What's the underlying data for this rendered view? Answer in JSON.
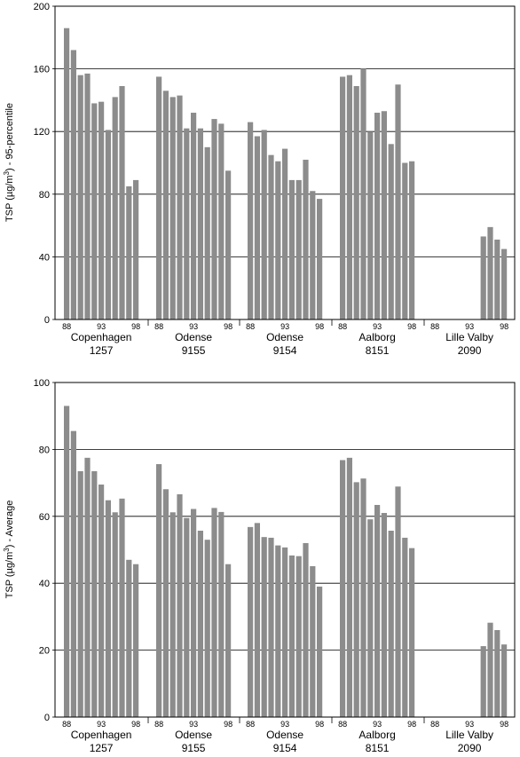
{
  "chart_data": [
    {
      "type": "bar",
      "ylabel_parts": [
        "TSP (µg/m",
        "3",
        ")  -  95-percentile"
      ],
      "ylim": [
        0,
        200
      ],
      "yticks": [
        "0",
        "40",
        "80",
        "120",
        "160",
        "200"
      ],
      "grid": true,
      "bar_color": "#8c8c8c",
      "x": [
        1988,
        1989,
        1990,
        1991,
        1992,
        1993,
        1994,
        1995,
        1996,
        1997,
        1998
      ],
      "xtick_labels": [
        "88",
        "93",
        "98"
      ],
      "groups": [
        {
          "name": "Copenhagen",
          "code": "1257",
          "values": [
            186,
            172,
            156,
            157,
            138,
            139,
            121,
            142,
            149,
            85,
            89
          ]
        },
        {
          "name": "Odense",
          "code": "9155",
          "values": [
            155,
            146,
            142,
            143,
            122,
            132,
            122,
            110,
            128,
            125,
            95
          ]
        },
        {
          "name": "Odense",
          "code": "9154",
          "values": [
            126,
            117,
            121,
            105,
            101,
            109,
            89,
            89,
            102,
            82,
            77
          ]
        },
        {
          "name": "Aalborg",
          "code": "8151",
          "values": [
            155,
            156,
            149,
            160,
            120,
            132,
            133,
            112,
            150,
            100,
            101
          ]
        },
        {
          "name": "Lille Valby",
          "code": "2090",
          "values": [
            null,
            null,
            null,
            null,
            null,
            null,
            null,
            53,
            59,
            51,
            45
          ]
        }
      ]
    },
    {
      "type": "bar",
      "ylabel_parts": [
        "TSP (µg/m",
        "3",
        ")  -  Average"
      ],
      "ylim": [
        0,
        100
      ],
      "yticks": [
        "0",
        "20",
        "40",
        "60",
        "80",
        "100"
      ],
      "grid": true,
      "bar_color": "#8c8c8c",
      "x": [
        1988,
        1989,
        1990,
        1991,
        1992,
        1993,
        1994,
        1995,
        1996,
        1997,
        1998
      ],
      "xtick_labels": [
        "88",
        "93",
        "98"
      ],
      "groups": [
        {
          "name": "Copenhagen",
          "code": "1257",
          "values": [
            93,
            85.5,
            73.5,
            77.5,
            73.5,
            69.5,
            64.8,
            61.2,
            65.3,
            47,
            45.7
          ]
        },
        {
          "name": "Odense",
          "code": "9155",
          "values": [
            75.6,
            68.1,
            61.2,
            66.6,
            59.5,
            62.2,
            55.7,
            53,
            62.5,
            61.3,
            45.7
          ]
        },
        {
          "name": "Odense",
          "code": "9154",
          "values": [
            56.8,
            58,
            53.8,
            53.6,
            51.3,
            50.7,
            48.3,
            48.1,
            52,
            45.1,
            39
          ]
        },
        {
          "name": "Aalborg",
          "code": "8151",
          "values": [
            76.8,
            77.5,
            70.2,
            71.3,
            59.1,
            63.4,
            61,
            55.7,
            68.9,
            53.6,
            50.5
          ]
        },
        {
          "name": "Lille Valby",
          "code": "2090",
          "values": [
            null,
            null,
            null,
            null,
            null,
            null,
            null,
            21.2,
            28.2,
            26,
            21.7
          ]
        }
      ]
    }
  ]
}
